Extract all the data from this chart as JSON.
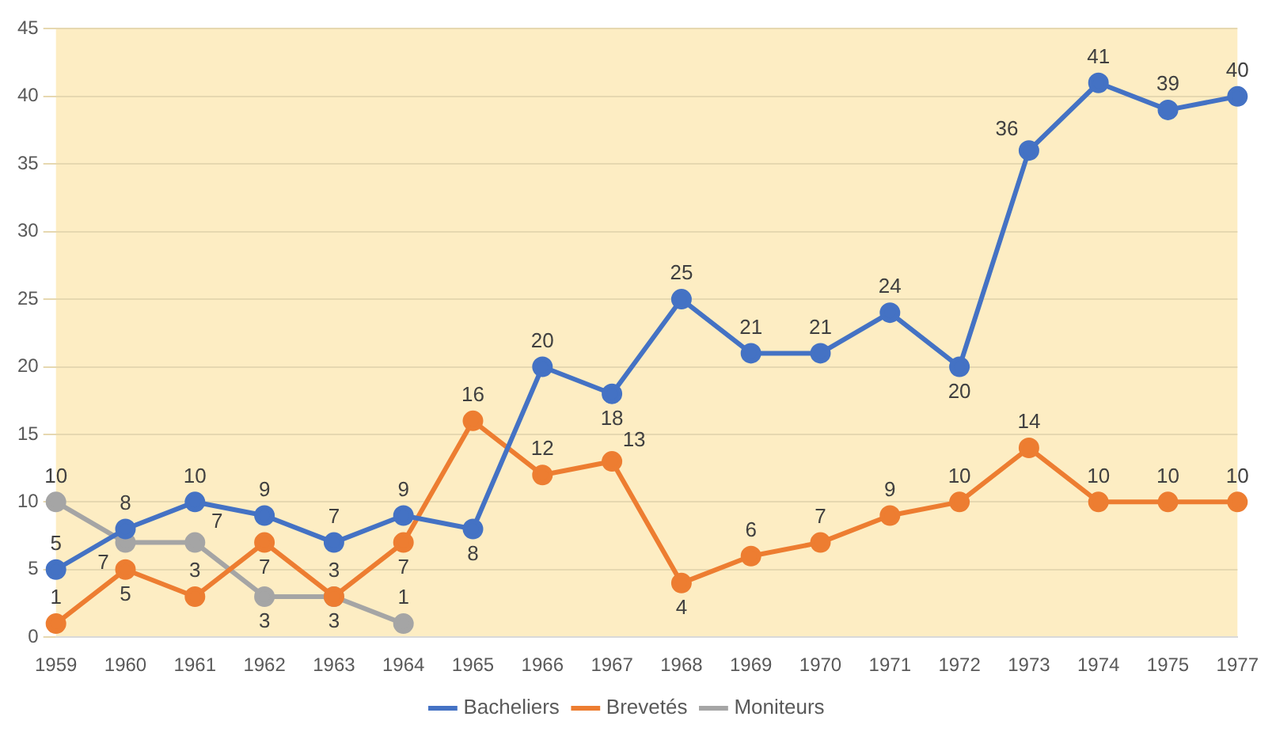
{
  "chart_data": {
    "type": "line",
    "categories": [
      "1959",
      "1960",
      "1961",
      "1962",
      "1963",
      "1964",
      "1965",
      "1966",
      "1967",
      "1968",
      "1969",
      "1970",
      "1971",
      "1972",
      "1973",
      "1974",
      "1975",
      "1977"
    ],
    "series": [
      {
        "name": "Bacheliers",
        "color": "#4472c4",
        "values": [
          5,
          8,
          10,
          9,
          7,
          9,
          8,
          20,
          18,
          25,
          21,
          21,
          24,
          20,
          36,
          41,
          39,
          40
        ]
      },
      {
        "name": "Brevetés",
        "color": "#ed7d31",
        "values": [
          1,
          5,
          3,
          7,
          3,
          7,
          16,
          12,
          13,
          4,
          6,
          7,
          9,
          10,
          14,
          10,
          10,
          10
        ]
      },
      {
        "name": "Moniteurs",
        "color": "#a5a5a5",
        "values": [
          10,
          7,
          7,
          3,
          3,
          1,
          null,
          null,
          null,
          null,
          null,
          null,
          null,
          null,
          null,
          null,
          null,
          null
        ]
      }
    ],
    "ylim": [
      0,
      45
    ],
    "yticks": [
      0,
      5,
      10,
      15,
      20,
      25,
      30,
      35,
      40,
      45
    ],
    "grid": "y",
    "legend": "bottom",
    "marker": "circle",
    "line_style": "solid",
    "data_labels": true
  }
}
